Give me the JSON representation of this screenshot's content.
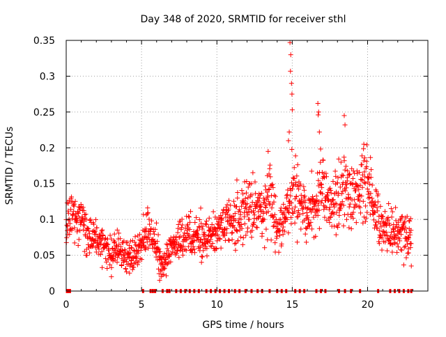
{
  "chart_data": {
    "type": "scatter",
    "title": "Day 348 of 2020, SRMTID for receiver sthl",
    "xlabel": "GPS time / hours",
    "ylabel": "SRMTID / TECUs",
    "xlim": [
      0,
      24
    ],
    "ylim": [
      0,
      0.35
    ],
    "grid": true,
    "x_ticks": [
      "0",
      "5",
      "10",
      "15",
      "20"
    ],
    "y_ticks": [
      "0",
      "0.05",
      "0.1",
      "0.15",
      "0.2",
      "0.25",
      "0.3",
      "0.35"
    ],
    "series": [
      {
        "name": "SRMTID",
        "color": "#ff0000",
        "marker": "plus",
        "trend": [
          [
            0.0,
            0.09
          ],
          [
            0.5,
            0.11
          ],
          [
            1.0,
            0.1
          ],
          [
            1.5,
            0.08
          ],
          [
            2.0,
            0.07
          ],
          [
            2.5,
            0.06
          ],
          [
            3.0,
            0.055
          ],
          [
            3.5,
            0.06
          ],
          [
            4.0,
            0.05
          ],
          [
            4.5,
            0.05
          ],
          [
            5.0,
            0.07
          ],
          [
            5.5,
            0.085
          ],
          [
            6.0,
            0.06
          ],
          [
            6.3,
            0.03
          ],
          [
            7.0,
            0.065
          ],
          [
            7.5,
            0.07
          ],
          [
            8.0,
            0.08
          ],
          [
            9.0,
            0.07
          ],
          [
            10.0,
            0.08
          ],
          [
            11.0,
            0.1
          ],
          [
            12.0,
            0.12
          ],
          [
            13.0,
            0.11
          ],
          [
            13.5,
            0.13
          ],
          [
            14.0,
            0.09
          ],
          [
            14.5,
            0.1
          ],
          [
            15.0,
            0.14
          ],
          [
            15.5,
            0.13
          ],
          [
            16.0,
            0.11
          ],
          [
            16.5,
            0.12
          ],
          [
            17.0,
            0.15
          ],
          [
            17.5,
            0.12
          ],
          [
            18.0,
            0.13
          ],
          [
            18.5,
            0.15
          ],
          [
            19.0,
            0.13
          ],
          [
            19.5,
            0.15
          ],
          [
            20.0,
            0.16
          ],
          [
            20.5,
            0.11
          ],
          [
            21.0,
            0.09
          ],
          [
            21.5,
            0.085
          ],
          [
            22.0,
            0.08
          ],
          [
            22.5,
            0.08
          ],
          [
            22.9,
            0.07
          ]
        ],
        "outliers": [
          [
            14.85,
            0.347
          ],
          [
            14.9,
            0.33
          ],
          [
            14.88,
            0.307
          ],
          [
            14.95,
            0.29
          ],
          [
            14.98,
            0.275
          ],
          [
            15.0,
            0.253
          ],
          [
            16.7,
            0.262
          ],
          [
            16.75,
            0.25
          ],
          [
            16.72,
            0.246
          ],
          [
            18.45,
            0.245
          ],
          [
            18.5,
            0.232
          ],
          [
            14.8,
            0.222
          ],
          [
            16.8,
            0.222
          ],
          [
            13.4,
            0.195
          ],
          [
            14.75,
            0.21
          ],
          [
            19.75,
            0.205
          ],
          [
            6.2,
            0.015
          ],
          [
            6.3,
            0.02
          ],
          [
            3.0,
            0.02
          ],
          [
            4.2,
            0.025
          ],
          [
            22.9,
            0.035
          ]
        ],
        "zero_x": [
          0.05,
          0.15,
          0.25,
          5.1,
          5.6,
          5.75,
          5.9,
          6.4,
          6.7,
          6.85,
          7.3,
          7.6,
          7.9,
          8.2,
          8.5,
          8.8,
          9.3,
          9.6,
          9.9,
          10.2,
          10.5,
          10.8,
          11.2,
          11.5,
          11.9,
          12.3,
          12.7,
          13.0,
          13.5,
          14.0,
          14.3,
          14.6,
          15.2,
          15.5,
          15.8,
          16.6,
          16.9,
          17.2,
          18.1,
          18.5,
          18.9,
          19.5,
          20.7,
          21.5,
          21.8,
          22.1,
          22.4,
          22.7,
          22.9
        ]
      }
    ]
  }
}
